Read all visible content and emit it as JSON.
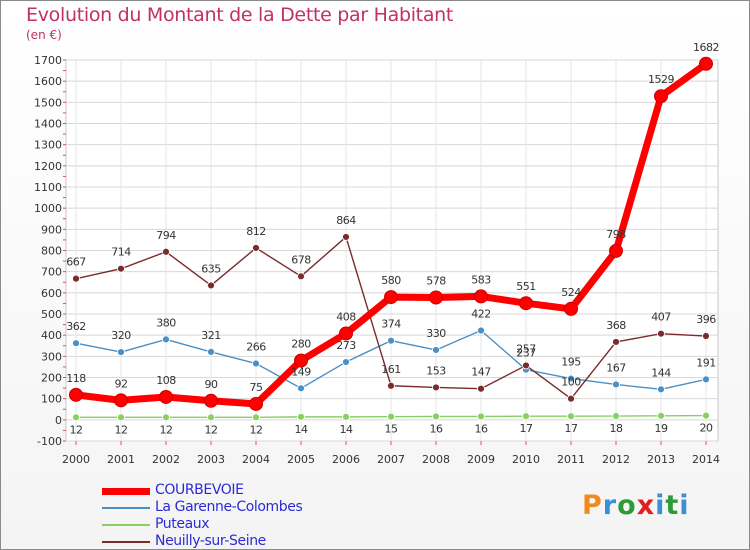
{
  "title": "Evolution du Montant de la Dette par Habitant",
  "unit_label": "(en €)",
  "logo": {
    "text": "Proxiti",
    "colors": [
      "#f08a1c",
      "#3a8fd8",
      "#2e9a3a",
      "#e01f1f",
      "#3a8fd8",
      "#2e9a3a",
      "#3a8fd8"
    ]
  },
  "chart_data": {
    "type": "line",
    "title": "Evolution du Montant de la Dette par Habitant",
    "ylabel": "(en €)",
    "xlabel": "",
    "x": [
      "2000",
      "2001",
      "2002",
      "2003",
      "2004",
      "2005",
      "2006",
      "2007",
      "2008",
      "2009",
      "2010",
      "2011",
      "2012",
      "2013",
      "2014"
    ],
    "ylim": [
      -100,
      1700
    ],
    "yticks": [
      -100,
      0,
      100,
      200,
      300,
      400,
      500,
      600,
      700,
      800,
      900,
      1000,
      1100,
      1200,
      1300,
      1400,
      1500,
      1600,
      1700
    ],
    "grid": true,
    "legend_position": "bottom-left",
    "series": [
      {
        "name": "COURBEVOIE",
        "color": "#ff0000",
        "values": [
          118,
          92,
          108,
          90,
          75,
          280,
          408,
          580,
          578,
          583,
          551,
          524,
          798,
          1529,
          1682
        ]
      },
      {
        "name": "La Garenne-Colombes",
        "color": "#4a90c8",
        "values": [
          362,
          320,
          380,
          321,
          266,
          149,
          273,
          374,
          330,
          422,
          237,
          195,
          167,
          144,
          191
        ]
      },
      {
        "name": "Puteaux",
        "color": "#88d060",
        "values": [
          12,
          12,
          12,
          12,
          12,
          14,
          14,
          15,
          16,
          16,
          17,
          17,
          18,
          19,
          20
        ]
      },
      {
        "name": "Neuilly-sur-Seine",
        "color": "#7a2b2b",
        "values": [
          667,
          714,
          794,
          635,
          812,
          678,
          864,
          161,
          153,
          147,
          257,
          100,
          368,
          407,
          396
        ]
      }
    ]
  }
}
